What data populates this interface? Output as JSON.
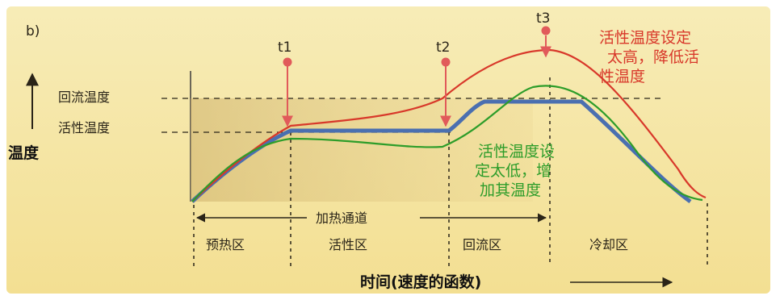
{
  "panel_label": "b)",
  "y_axis": {
    "title": "温度",
    "levels": {
      "reflow": "回流温度",
      "active": "活性温度"
    }
  },
  "x_axis": {
    "title": "时间(速度的函数)"
  },
  "markers": {
    "t1": "t1",
    "t2": "t2",
    "t3": "t3"
  },
  "zones": {
    "heating_channel": "加热通道",
    "preheat": "预热区",
    "active": "活性区",
    "reflow": "回流区",
    "cooling": "冷却区"
  },
  "annotations": {
    "too_high": [
      "活性温度设定",
      "太高，降低活",
      "性温度"
    ],
    "too_low": [
      "活性温度设",
      "定太低，增",
      "加其温度"
    ]
  },
  "colors": {
    "panel_background": "#f6e7a6",
    "shaded_region": "#d9c07a",
    "target_curve": "#4a6fb0",
    "too_high_curve": "#d8382a",
    "too_low_curve": "#2d9d2a",
    "marker": "#e15a5a"
  }
}
